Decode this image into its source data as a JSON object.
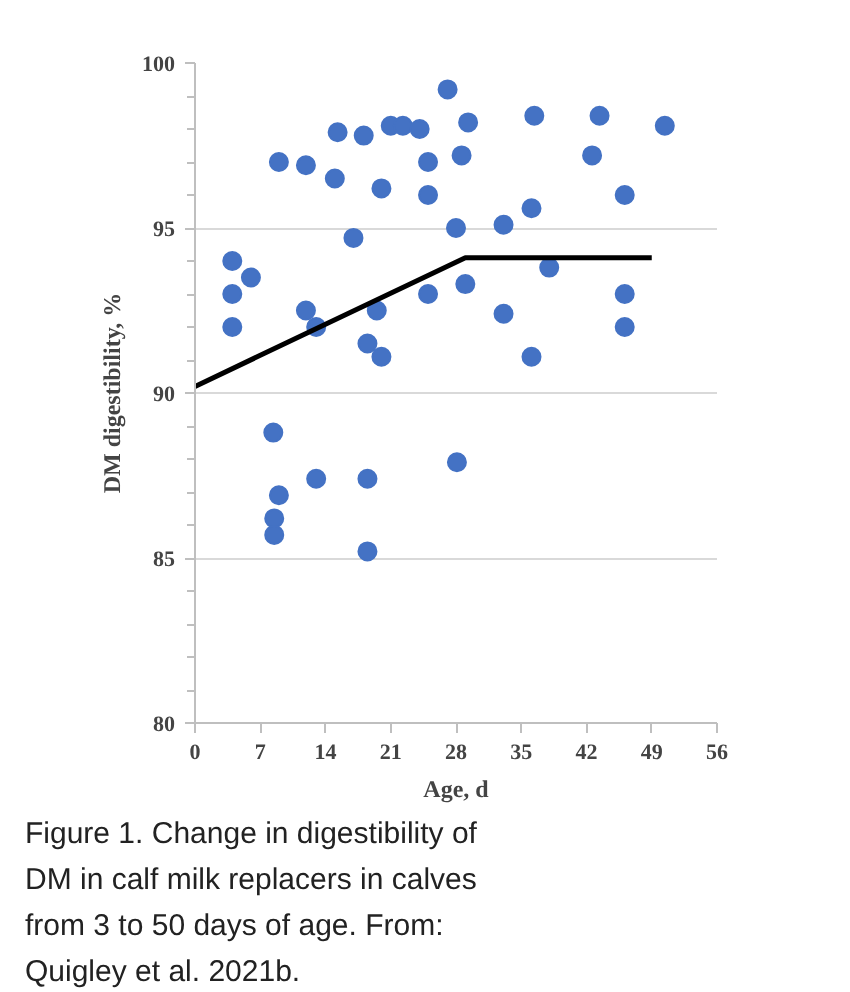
{
  "chart_data": {
    "type": "scatter",
    "xlabel": "Age, d",
    "ylabel": "DM digestibility, %",
    "xlim": [
      0,
      56
    ],
    "xticks": [
      0,
      7,
      14,
      21,
      28,
      35,
      42,
      49,
      56
    ],
    "ylim": [
      80,
      100
    ],
    "yticks": [
      80,
      85,
      90,
      95,
      100
    ],
    "grid": "y",
    "series": [
      {
        "marker": "circle",
        "color": "#4472c4",
        "x": [
          4.0,
          4.0,
          4.0,
          6.0,
          9.0,
          8.4,
          11.9,
          11.9,
          13.0,
          15.3,
          15.0,
          17.0,
          18.1,
          20.0,
          19.5,
          18.5,
          20.0,
          21.0,
          22.3,
          24.1,
          27.1,
          29.3,
          36.4,
          43.4,
          50.4,
          25.0,
          28.6,
          42.6,
          25.0,
          46.1,
          28.0,
          33.1,
          36.1,
          38.0,
          25.0,
          29.0,
          33.1,
          46.1,
          46.1,
          36.1,
          13.0,
          18.5,
          28.1,
          9.0,
          8.5,
          8.5,
          18.5
        ],
        "values": [
          94.0,
          93.0,
          92.0,
          93.5,
          97.0,
          88.8,
          96.9,
          92.5,
          92.0,
          97.9,
          96.5,
          94.7,
          97.8,
          96.2,
          92.5,
          91.5,
          91.1,
          98.1,
          98.1,
          98.0,
          99.2,
          98.2,
          98.4,
          98.4,
          98.1,
          97.0,
          97.2,
          97.2,
          96.0,
          96.0,
          95.0,
          95.1,
          95.6,
          93.8,
          93.0,
          93.3,
          92.4,
          93.0,
          92.0,
          91.1,
          87.4,
          87.4,
          87.9,
          86.9,
          86.2,
          85.7,
          85.2
        ]
      },
      {
        "type": "line",
        "color": "#000000",
        "x": [
          0,
          29,
          49
        ],
        "values": [
          90.2,
          94.1,
          94.1
        ]
      }
    ],
    "annotations": [
      "Figure 1. Change in digestibility of DM in calf milk replacers in calves from 3 to 50 days of age.  From: Quigley et al. 2021b."
    ]
  }
}
